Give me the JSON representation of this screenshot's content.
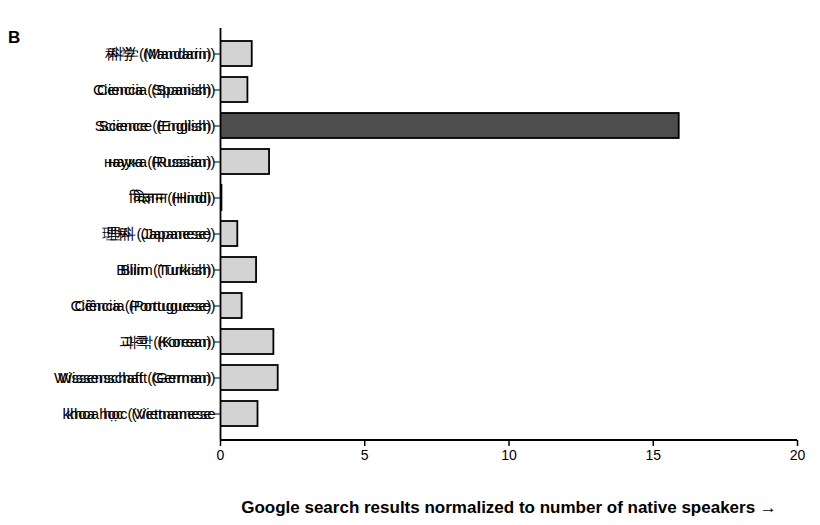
{
  "chart_data": {
    "type": "bar",
    "orientation": "horizontal",
    "title": "B",
    "x_label": "Google search results normalized to number of native speakers",
    "categories": [
      "科学 (Mandarin)",
      "Ciencia (Spanish)",
      "Science (English)",
      "наука (Russian)",
      "विज्ञान (Hindi)",
      "理科 (Japanese)",
      "Bilim (Turkish)",
      "Ciência (Portuguese)",
      "과학 (Korean)",
      "Wissenschaft (German)",
      "khoa học (Vietnamese"
    ],
    "values": [
      1.1,
      0.95,
      15.9,
      1.7,
      0.05,
      0.6,
      1.25,
      0.75,
      1.85,
      2.0,
      1.3
    ],
    "colors": [
      "#d3d3d3",
      "#d3d3d3",
      "#4d4d4d",
      "#d3d3d3",
      "#d3d3d3",
      "#d3d3d3",
      "#d3d3d3",
      "#d3d3d3",
      "#d3d3d3",
      "#d3d3d3",
      "#d3d3d3"
    ],
    "xlim": [
      0,
      20
    ],
    "xticks": [
      0,
      5,
      10,
      15,
      20
    ],
    "grid": false
  }
}
